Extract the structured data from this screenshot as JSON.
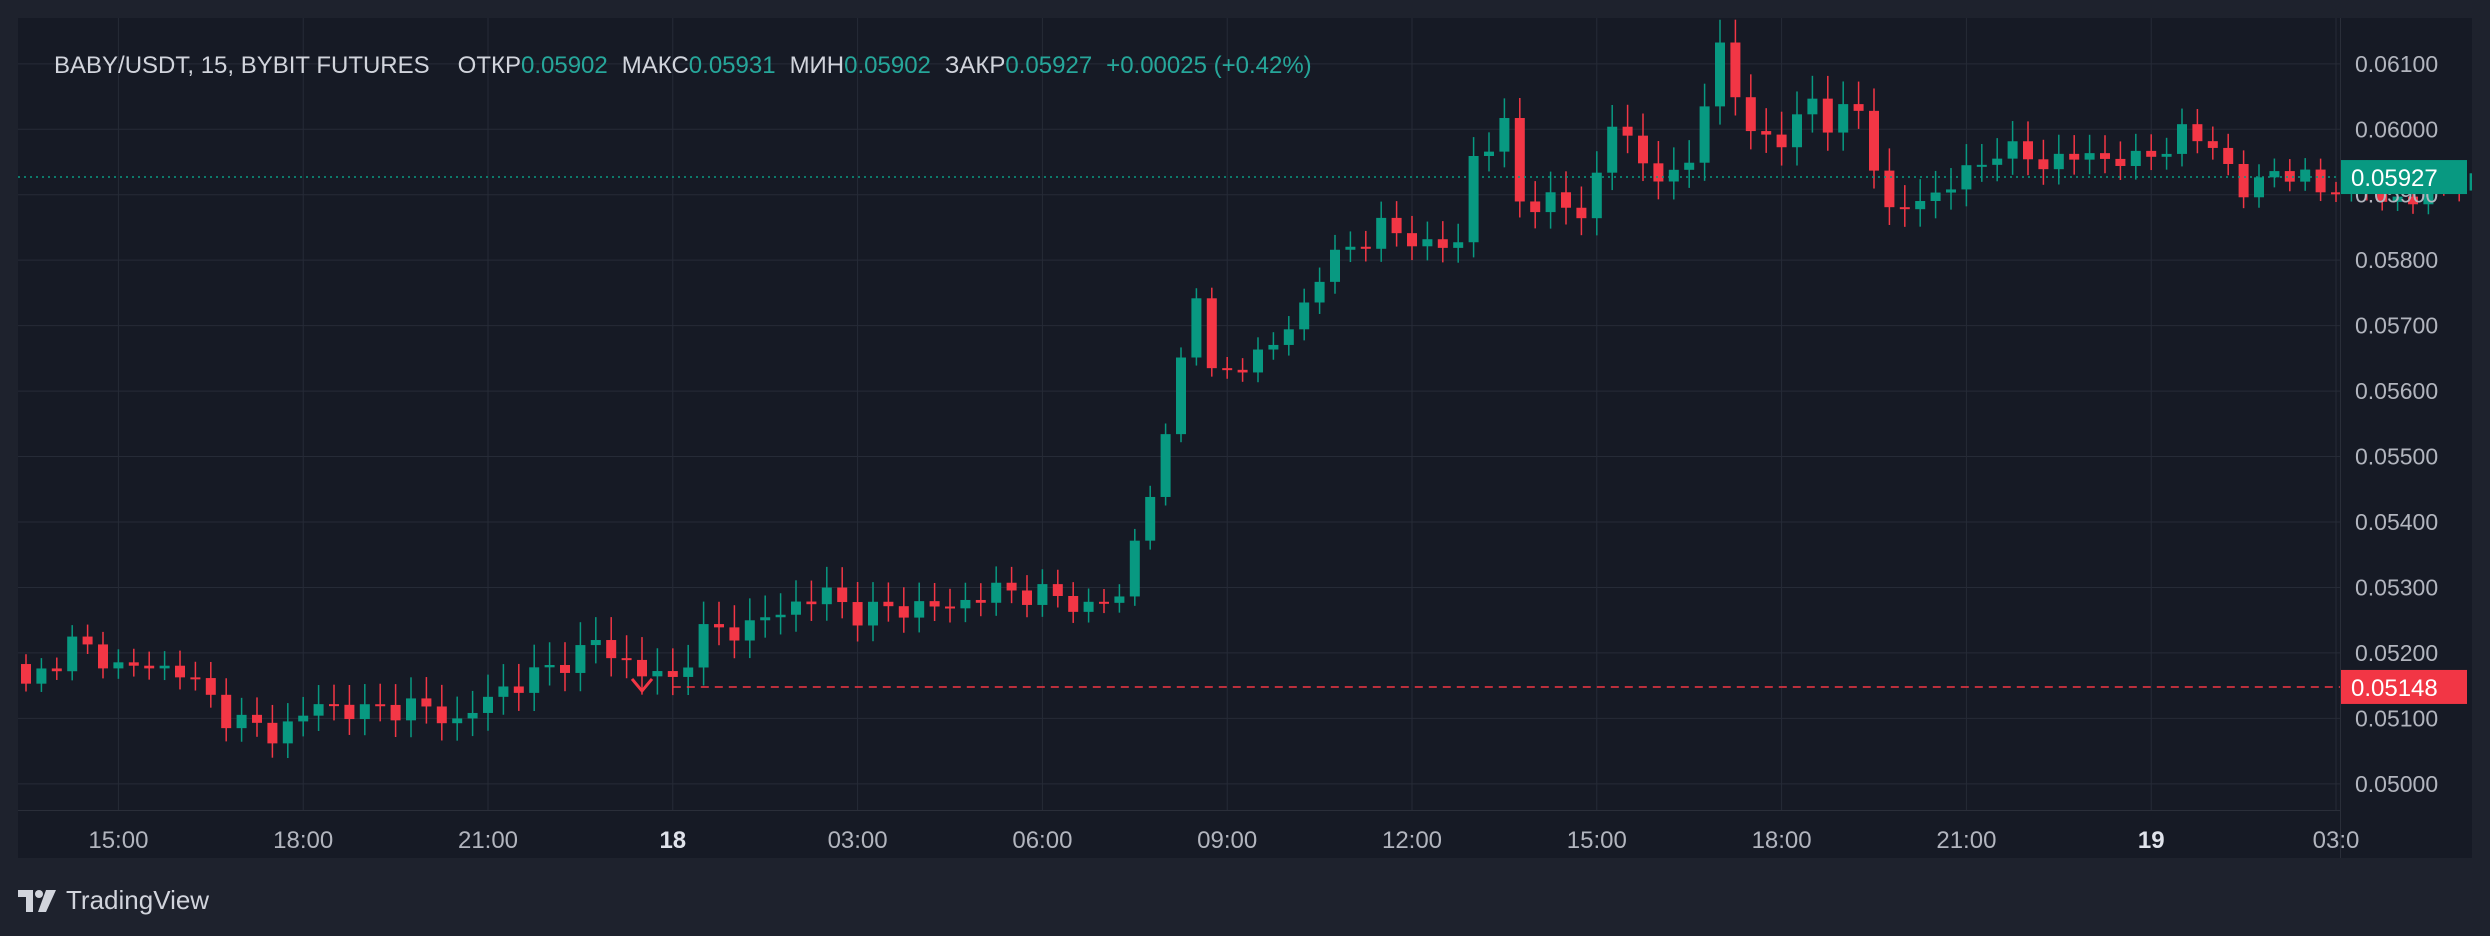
{
  "legend": {
    "symbol": "BABY/USDT, 15, BYBIT FUTURES",
    "open_label": "ОТКР",
    "open_value": "0.05902",
    "high_label": "МАКС",
    "high_value": "0.05931",
    "low_label": "МИН",
    "low_value": "0.05902",
    "close_label": "ЗАКР",
    "close_value": "0.05927",
    "change": "+0.00025 (+0.42%)"
  },
  "brand": {
    "name": "TradingView"
  },
  "colors": {
    "background": "#161a25",
    "grid": "#262b37",
    "up": "#089981",
    "down": "#f23645",
    "text": "#d1d4dc",
    "axis_text": "#b2b5be"
  },
  "chart_data": {
    "type": "candlestick",
    "symbol": "BABY/USDT",
    "interval": "15",
    "exchange": "BYBIT FUTURES",
    "y_axis": {
      "ticks": [
        "0.05000",
        "0.05100",
        "0.05200",
        "0.05300",
        "0.05400",
        "0.05500",
        "0.05600",
        "0.05700",
        "0.05800",
        "0.05900",
        "0.06000",
        "0.06100"
      ],
      "range": [
        0.0496,
        0.0617
      ]
    },
    "x_axis": {
      "ticks": [
        {
          "label": "15:00",
          "bold": false
        },
        {
          "label": "18:00",
          "bold": false
        },
        {
          "label": "21:00",
          "bold": false
        },
        {
          "label": "18",
          "bold": true
        },
        {
          "label": "03:00",
          "bold": false
        },
        {
          "label": "06:00",
          "bold": false
        },
        {
          "label": "09:00",
          "bold": false
        },
        {
          "label": "12:00",
          "bold": false
        },
        {
          "label": "15:00",
          "bold": false
        },
        {
          "label": "18:00",
          "bold": false
        },
        {
          "label": "21:00",
          "bold": false
        },
        {
          "label": "19",
          "bold": true
        },
        {
          "label": "03:0",
          "bold": false
        }
      ]
    },
    "last_price": {
      "label": "0.05927",
      "value": 0.05927
    },
    "alert_level": {
      "label": "0.05148",
      "value": 0.05148
    },
    "grid": true,
    "keyframes": [
      [
        0,
        0.05145
      ],
      [
        3,
        0.05215
      ],
      [
        6,
        0.0518
      ],
      [
        10,
        0.05175
      ],
      [
        13,
        0.05105
      ],
      [
        16,
        0.05075
      ],
      [
        19,
        0.0512
      ],
      [
        22,
        0.0511
      ],
      [
        25,
        0.0512
      ],
      [
        28,
        0.05095
      ],
      [
        31,
        0.05145
      ],
      [
        34,
        0.05175
      ],
      [
        37,
        0.05215
      ],
      [
        40,
        0.0517
      ],
      [
        42,
        0.0516
      ],
      [
        44,
        0.0523
      ],
      [
        47,
        0.0524
      ],
      [
        50,
        0.05275
      ],
      [
        52,
        0.0529
      ],
      [
        54,
        0.0526
      ],
      [
        57,
        0.0527
      ],
      [
        60,
        0.0527
      ],
      [
        63,
        0.05295
      ],
      [
        66,
        0.0529
      ],
      [
        69,
        0.0527
      ],
      [
        71,
        0.05285
      ],
      [
        72,
        0.0537
      ],
      [
        73,
        0.0545
      ],
      [
        74,
        0.0552
      ],
      [
        75,
        0.0565
      ],
      [
        76,
        0.0576
      ],
      [
        77,
        0.0562
      ],
      [
        79,
        0.0564
      ],
      [
        82,
        0.0569
      ],
      [
        84,
        0.0578
      ],
      [
        86,
        0.0582
      ],
      [
        88,
        0.0585
      ],
      [
        90,
        0.0583
      ],
      [
        93,
        0.0582
      ],
      [
        94,
        0.0596
      ],
      [
        96,
        0.06
      ],
      [
        97,
        0.0589
      ],
      [
        99,
        0.0589
      ],
      [
        101,
        0.0587
      ],
      [
        102,
        0.0593
      ],
      [
        103,
        0.0601
      ],
      [
        105,
        0.0595
      ],
      [
        107,
        0.0592
      ],
      [
        108,
        0.0595
      ],
      [
        109,
        0.0605
      ],
      [
        110,
        0.0612
      ],
      [
        111,
        0.0605
      ],
      [
        112,
        0.06
      ],
      [
        114,
        0.0598
      ],
      [
        115,
        0.0601
      ],
      [
        116,
        0.0605
      ],
      [
        117,
        0.0601
      ],
      [
        119,
        0.0603
      ],
      [
        121,
        0.0587
      ],
      [
        123,
        0.0589
      ],
      [
        126,
        0.0593
      ],
      [
        128,
        0.0597
      ],
      [
        131,
        0.0595
      ],
      [
        134,
        0.0596
      ],
      [
        137,
        0.0595
      ],
      [
        140,
        0.0599
      ],
      [
        142,
        0.0598
      ],
      [
        144,
        0.059
      ],
      [
        146,
        0.0594
      ],
      [
        149,
        0.0591
      ],
      [
        151,
        0.0592
      ],
      [
        153,
        0.05895
      ],
      [
        155,
        0.0589
      ],
      [
        157,
        0.0592
      ],
      [
        160,
        0.0591
      ],
      [
        163,
        0.05915
      ]
    ]
  }
}
